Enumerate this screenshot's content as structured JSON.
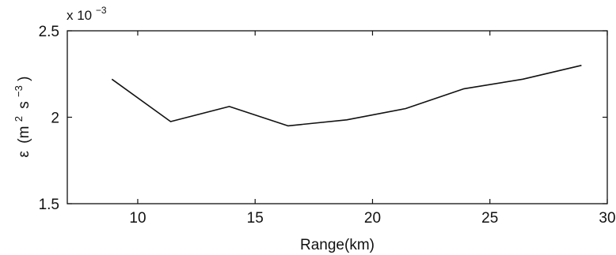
{
  "chart_data": {
    "type": "line",
    "xlabel": "Range(km)",
    "ylabel": {
      "symbol": "ε",
      "unit_main": "(m",
      "exp1": "2",
      "unit_mid": "s",
      "exp2": "−3",
      "unit_end": ")"
    },
    "y_multiplier": {
      "base": "x 10",
      "exponent": "−3"
    },
    "xlim": [
      7,
      30
    ],
    "ylim": [
      1.5,
      2.5
    ],
    "xticks": [
      10,
      15,
      20,
      25,
      30
    ],
    "yticks": [
      1.5,
      2,
      2.5
    ],
    "xtick_labels": [
      "10",
      "15",
      "20",
      "25",
      "30"
    ],
    "ytick_labels": [
      "1.5",
      "2",
      "2.5"
    ],
    "grid": false,
    "series": [
      {
        "color": "#111111",
        "x": [
          8.9,
          11.4,
          13.9,
          16.4,
          18.9,
          21.4,
          23.9,
          26.4,
          28.9
        ],
        "y": [
          2.22,
          1.975,
          2.062,
          1.95,
          1.985,
          2.05,
          2.165,
          2.22,
          2.3
        ]
      }
    ]
  }
}
